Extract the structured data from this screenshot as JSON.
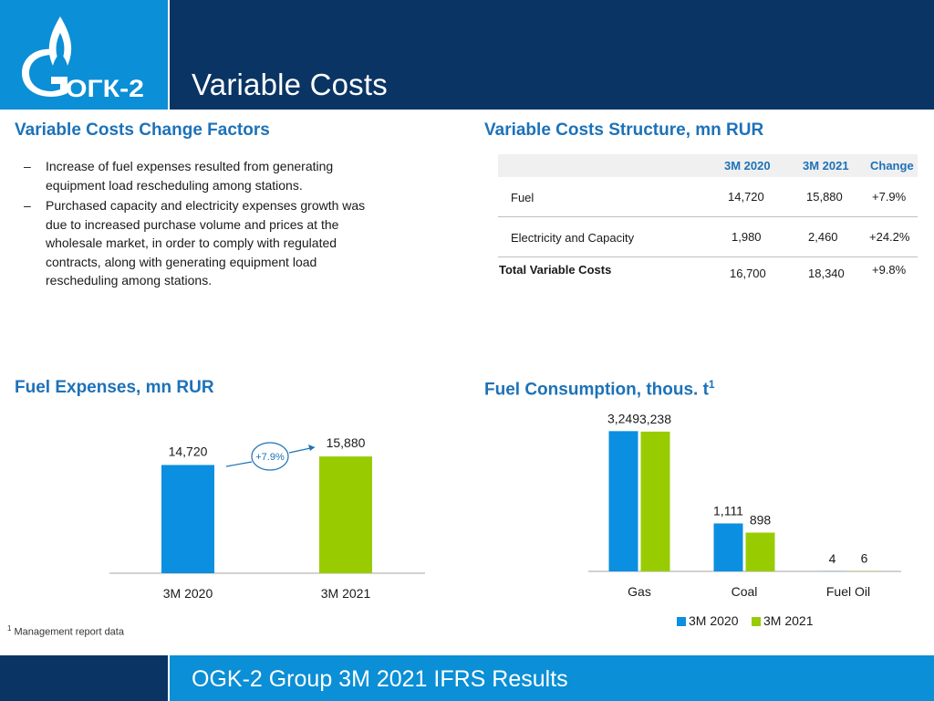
{
  "header": {
    "logo_text": "ОГК-2",
    "title": "Variable Costs"
  },
  "sections": {
    "change_factors": "Variable Costs Change Factors",
    "structure": "Variable Costs Structure, mn RUR",
    "fuel_expenses": "Fuel Expenses, mn RUR",
    "fuel_consumption": "Fuel Consumption, thous. t",
    "fuel_consumption_sup": "1"
  },
  "bullets": [
    "Increase of fuel expenses resulted from generating equipment load rescheduling among stations.",
    "Purchased capacity and electricity expenses growth was due to increased purchase volume and prices at the wholesale market, in order to comply with regulated contracts, along with generating equipment load rescheduling among stations."
  ],
  "bullet_dash": "–",
  "table": {
    "headers": [
      "3M 2020",
      "3M 2021",
      "Change"
    ],
    "rows": [
      {
        "label": "Fuel",
        "v2020": "14,720",
        "v2021": "15,880",
        "change": "+7.9%"
      },
      {
        "label": "Electricity and Capacity",
        "v2020": "1,980",
        "v2021": "2,460",
        "change": "+24.2%"
      },
      {
        "label": "Total Variable Costs",
        "v2020": "16,700",
        "v2021": "18,340",
        "change": "+9.8%"
      }
    ]
  },
  "chart_data": [
    {
      "type": "bar",
      "title": "Fuel Expenses, mn RUR",
      "categories": [
        "3M 2020",
        "3M 2021"
      ],
      "values": [
        14720,
        15880
      ],
      "value_labels": [
        "14,720",
        "15,880"
      ],
      "annotation": "+7.9%",
      "colors": [
        "#0b8fe0",
        "#99cc00"
      ],
      "ylim": [
        0,
        18000
      ]
    },
    {
      "type": "bar",
      "title": "Fuel Consumption, thous. t",
      "categories": [
        "Gas",
        "Coal",
        "Fuel Oil"
      ],
      "series": [
        {
          "name": "3M 2020",
          "values": [
            3249,
            1111,
            4
          ],
          "labels": [
            "3,249",
            "1,111",
            "4"
          ],
          "color": "#0b8fe0"
        },
        {
          "name": "3M 2021",
          "values": [
            3238,
            898,
            6
          ],
          "labels": [
            "3,238",
            "898",
            "6"
          ],
          "color": "#99cc00"
        }
      ],
      "ylim": [
        0,
        3700
      ],
      "legend": "bottom"
    }
  ],
  "footnote": {
    "sup": "1",
    "text": "Management report data"
  },
  "footer": {
    "title": "OGK-2 Group 3M 2021 IFRS Results"
  }
}
